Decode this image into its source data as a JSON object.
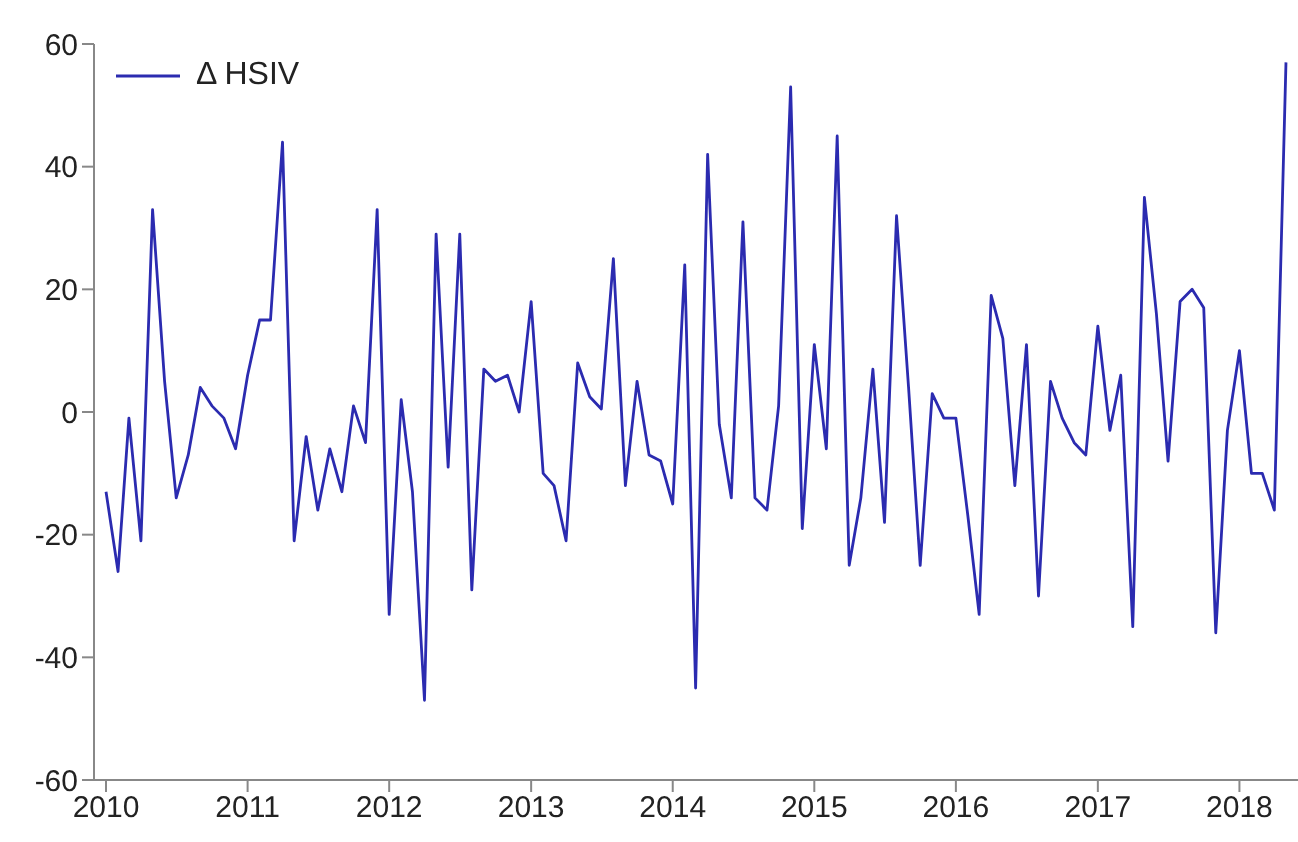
{
  "chart_data": {
    "type": "line",
    "x": [
      "2010-01",
      "2010-02",
      "2010-03",
      "2010-04",
      "2010-05",
      "2010-06",
      "2010-07",
      "2010-08",
      "2010-09",
      "2010-10",
      "2010-11",
      "2010-12",
      "2011-01",
      "2011-02",
      "2011-03",
      "2011-04",
      "2011-05",
      "2011-06",
      "2011-07",
      "2011-08",
      "2011-09",
      "2011-10",
      "2011-11",
      "2011-12",
      "2012-01",
      "2012-02",
      "2012-03",
      "2012-04",
      "2012-05",
      "2012-06",
      "2012-07",
      "2012-08",
      "2012-09",
      "2012-10",
      "2012-11",
      "2012-12",
      "2013-01",
      "2013-02",
      "2013-03",
      "2013-04",
      "2013-05",
      "2013-06",
      "2013-07",
      "2013-08",
      "2013-09",
      "2013-10",
      "2013-11",
      "2013-12",
      "2014-01",
      "2014-02",
      "2014-03",
      "2014-04",
      "2014-05",
      "2014-06",
      "2014-07",
      "2014-08",
      "2014-09",
      "2014-10",
      "2014-11",
      "2014-12",
      "2015-01",
      "2015-02",
      "2015-03",
      "2015-04",
      "2015-05",
      "2015-06",
      "2015-07",
      "2015-08",
      "2015-09",
      "2015-10",
      "2015-11",
      "2015-12",
      "2016-01",
      "2016-02",
      "2016-03",
      "2016-04",
      "2016-05",
      "2016-06",
      "2016-07",
      "2016-08",
      "2016-09",
      "2016-10",
      "2016-11",
      "2016-12",
      "2017-01",
      "2017-02",
      "2017-03",
      "2017-04",
      "2017-05",
      "2017-06",
      "2017-07",
      "2017-08",
      "2017-09",
      "2017-10",
      "2017-11",
      "2017-12",
      "2018-01",
      "2018-02",
      "2018-03",
      "2018-04",
      "2018-05"
    ],
    "series": [
      {
        "name": "Δ HSIV",
        "color": "#2b2bb0",
        "values": [
          -13,
          -26,
          -1,
          -21,
          33,
          5,
          -14,
          -7,
          4,
          1,
          -1,
          -6,
          6,
          15,
          15,
          44,
          -21,
          -4,
          -16,
          -6,
          -13,
          1,
          -5,
          33,
          -33,
          2,
          -13,
          -47,
          29,
          -9,
          29,
          -29,
          7,
          5,
          6,
          0,
          18,
          -10,
          -12,
          -21,
          8,
          2.5,
          0.5,
          25,
          -12,
          5,
          -7,
          -8,
          -15,
          24,
          -45,
          42,
          -2,
          -14,
          31,
          -14,
          -16,
          1,
          53,
          -19,
          11,
          -6,
          45,
          -25,
          -14,
          7,
          -18,
          32,
          4,
          -25,
          3,
          -1,
          -1,
          -17,
          -33,
          19,
          12,
          -12,
          11,
          -30,
          5,
          -1,
          -5,
          -7,
          14,
          -3,
          6,
          -35,
          35,
          16,
          -8,
          18,
          20,
          17,
          -36,
          -3,
          10,
          -10,
          -10,
          -16,
          57
        ]
      }
    ],
    "xlim": [
      "2009-12",
      "2018-06"
    ],
    "xticks": [
      {
        "value": "2010-01",
        "label": "2010"
      },
      {
        "value": "2011-01",
        "label": "2011"
      },
      {
        "value": "2012-01",
        "label": "2012"
      },
      {
        "value": "2013-01",
        "label": "2013"
      },
      {
        "value": "2014-01",
        "label": "2014"
      },
      {
        "value": "2015-01",
        "label": "2015"
      },
      {
        "value": "2016-01",
        "label": "2016"
      },
      {
        "value": "2017-01",
        "label": "2017"
      },
      {
        "value": "2018-01",
        "label": "2018"
      }
    ],
    "ylim": [
      -60,
      60
    ],
    "yticks": [
      -60,
      -40,
      -20,
      0,
      20,
      40,
      60
    ],
    "legend": "top left",
    "marker": "none"
  }
}
